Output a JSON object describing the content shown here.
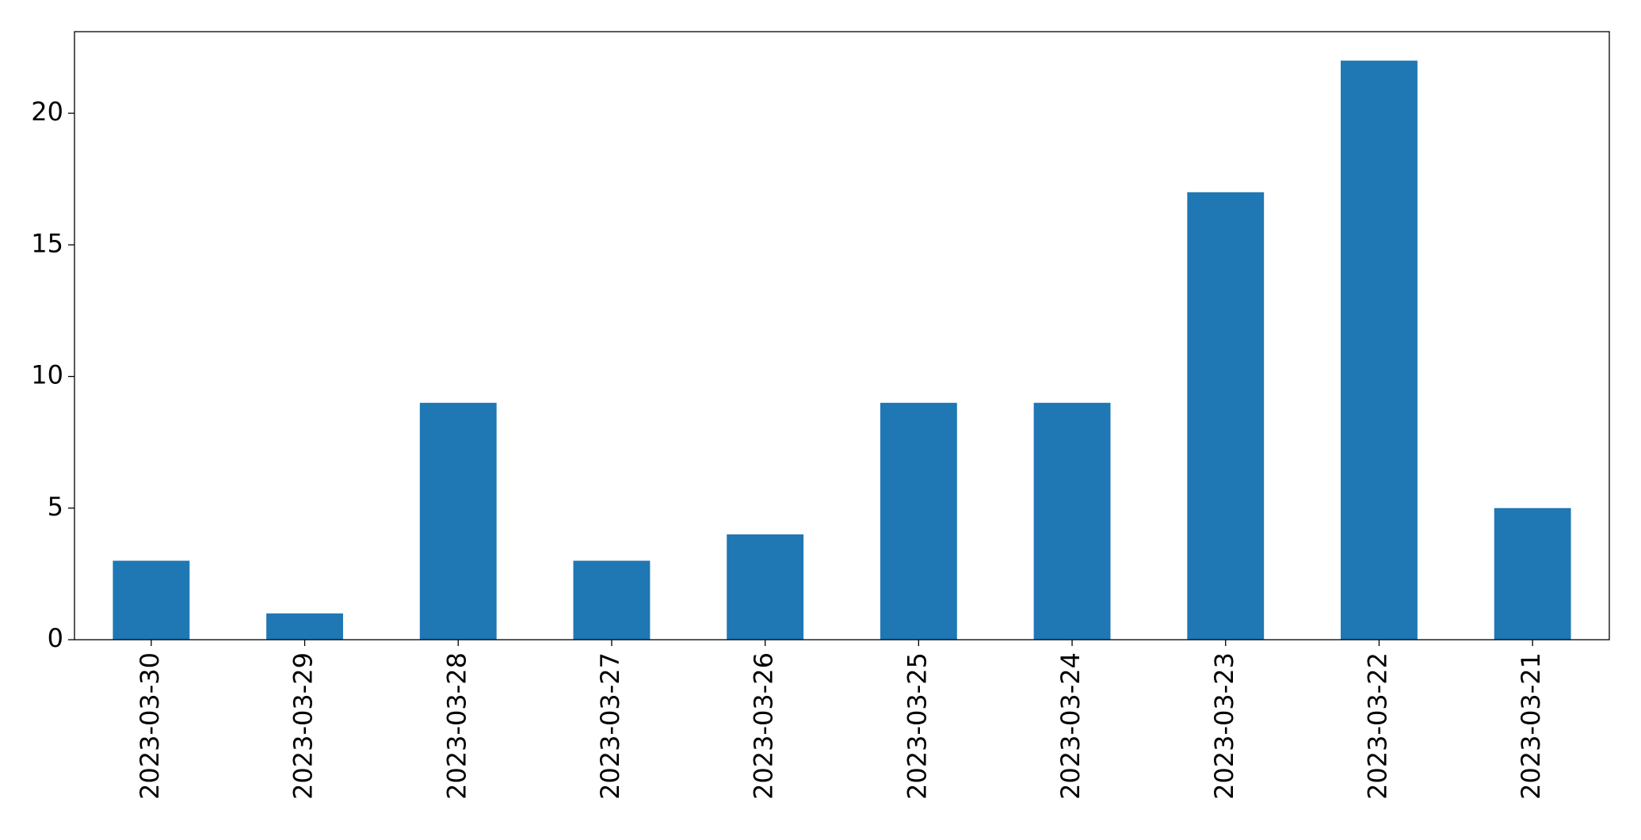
{
  "chart_data": {
    "type": "bar",
    "categories": [
      "2023-03-30",
      "2023-03-29",
      "2023-03-28",
      "2023-03-27",
      "2023-03-26",
      "2023-03-25",
      "2023-03-24",
      "2023-03-23",
      "2023-03-22",
      "2023-03-21"
    ],
    "values": [
      3,
      1,
      9,
      3,
      4,
      9,
      9,
      17,
      22,
      5
    ],
    "color": "#1f77b4",
    "ylim": [
      0,
      23.1
    ],
    "yticks": [
      0,
      5,
      10,
      15,
      20
    ],
    "grid": false
  }
}
